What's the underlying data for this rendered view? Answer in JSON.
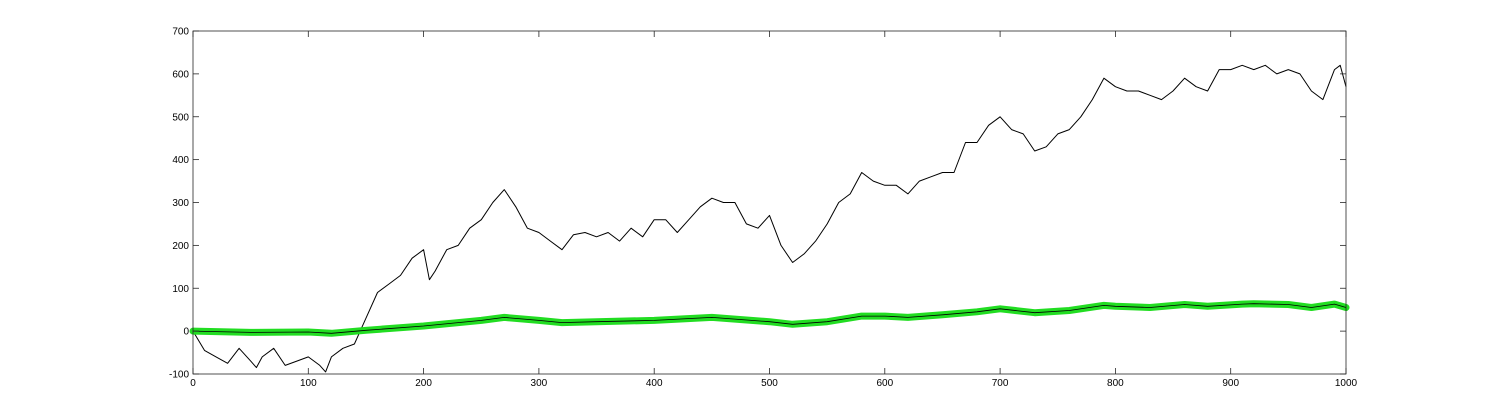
{
  "chart_data": {
    "type": "line",
    "title": "",
    "xlabel": "",
    "ylabel": "",
    "xlim": [
      0,
      1000
    ],
    "ylim": [
      -100,
      700
    ],
    "x_ticks": [
      0,
      100,
      200,
      300,
      400,
      500,
      600,
      700,
      800,
      900,
      1000
    ],
    "y_ticks": [
      -100,
      0,
      100,
      200,
      300,
      400,
      500,
      600,
      700
    ],
    "grid": false,
    "box": true,
    "series": [
      {
        "style": "thin black line",
        "color": "#000000",
        "points": [
          [
            0,
            0
          ],
          [
            10,
            -45
          ],
          [
            20,
            -60
          ],
          [
            30,
            -75
          ],
          [
            40,
            -40
          ],
          [
            50,
            -70
          ],
          [
            55,
            -85
          ],
          [
            60,
            -60
          ],
          [
            70,
            -40
          ],
          [
            80,
            -80
          ],
          [
            90,
            -70
          ],
          [
            100,
            -60
          ],
          [
            110,
            -80
          ],
          [
            115,
            -95
          ],
          [
            120,
            -60
          ],
          [
            130,
            -40
          ],
          [
            140,
            -30
          ],
          [
            145,
            0
          ],
          [
            150,
            30
          ],
          [
            160,
            90
          ],
          [
            170,
            110
          ],
          [
            180,
            130
          ],
          [
            190,
            170
          ],
          [
            200,
            190
          ],
          [
            205,
            120
          ],
          [
            210,
            140
          ],
          [
            220,
            190
          ],
          [
            230,
            200
          ],
          [
            240,
            240
          ],
          [
            250,
            260
          ],
          [
            260,
            300
          ],
          [
            270,
            330
          ],
          [
            280,
            290
          ],
          [
            290,
            240
          ],
          [
            300,
            230
          ],
          [
            310,
            210
          ],
          [
            320,
            190
          ],
          [
            330,
            225
          ],
          [
            340,
            230
          ],
          [
            350,
            220
          ],
          [
            360,
            230
          ],
          [
            370,
            210
          ],
          [
            380,
            240
          ],
          [
            390,
            220
          ],
          [
            400,
            260
          ],
          [
            410,
            260
          ],
          [
            420,
            230
          ],
          [
            430,
            260
          ],
          [
            440,
            290
          ],
          [
            450,
            310
          ],
          [
            460,
            300
          ],
          [
            470,
            300
          ],
          [
            480,
            250
          ],
          [
            490,
            240
          ],
          [
            500,
            270
          ],
          [
            510,
            200
          ],
          [
            520,
            160
          ],
          [
            530,
            180
          ],
          [
            540,
            210
          ],
          [
            550,
            250
          ],
          [
            560,
            300
          ],
          [
            570,
            320
          ],
          [
            580,
            370
          ],
          [
            590,
            350
          ],
          [
            600,
            340
          ],
          [
            610,
            340
          ],
          [
            620,
            320
          ],
          [
            630,
            350
          ],
          [
            640,
            360
          ],
          [
            650,
            370
          ],
          [
            660,
            370
          ],
          [
            670,
            440
          ],
          [
            680,
            440
          ],
          [
            690,
            480
          ],
          [
            700,
            500
          ],
          [
            710,
            470
          ],
          [
            720,
            460
          ],
          [
            730,
            420
          ],
          [
            740,
            430
          ],
          [
            750,
            460
          ],
          [
            760,
            470
          ],
          [
            770,
            500
          ],
          [
            780,
            540
          ],
          [
            790,
            590
          ],
          [
            800,
            570
          ],
          [
            810,
            560
          ],
          [
            820,
            560
          ],
          [
            830,
            550
          ],
          [
            840,
            540
          ],
          [
            850,
            560
          ],
          [
            860,
            590
          ],
          [
            870,
            570
          ],
          [
            880,
            560
          ],
          [
            890,
            610
          ],
          [
            900,
            610
          ],
          [
            910,
            620
          ],
          [
            920,
            610
          ],
          [
            930,
            620
          ],
          [
            940,
            600
          ],
          [
            950,
            610
          ],
          [
            960,
            600
          ],
          [
            970,
            560
          ],
          [
            980,
            540
          ],
          [
            990,
            610
          ],
          [
            995,
            620
          ],
          [
            1000,
            570
          ]
        ]
      },
      {
        "style": "thick green line with black thin line overlay",
        "color": "#22dd22",
        "points": [
          [
            0,
            0
          ],
          [
            50,
            -3
          ],
          [
            100,
            -2
          ],
          [
            120,
            -5
          ],
          [
            150,
            2
          ],
          [
            200,
            12
          ],
          [
            250,
            25
          ],
          [
            270,
            32
          ],
          [
            300,
            25
          ],
          [
            320,
            20
          ],
          [
            350,
            22
          ],
          [
            400,
            25
          ],
          [
            450,
            32
          ],
          [
            500,
            22
          ],
          [
            520,
            16
          ],
          [
            550,
            22
          ],
          [
            580,
            35
          ],
          [
            600,
            35
          ],
          [
            620,
            32
          ],
          [
            650,
            38
          ],
          [
            680,
            45
          ],
          [
            700,
            52
          ],
          [
            730,
            43
          ],
          [
            760,
            48
          ],
          [
            790,
            60
          ],
          [
            800,
            58
          ],
          [
            830,
            55
          ],
          [
            860,
            62
          ],
          [
            880,
            58
          ],
          [
            910,
            63
          ],
          [
            920,
            64
          ],
          [
            950,
            62
          ],
          [
            970,
            55
          ],
          [
            990,
            63
          ],
          [
            1000,
            55
          ]
        ]
      }
    ]
  }
}
